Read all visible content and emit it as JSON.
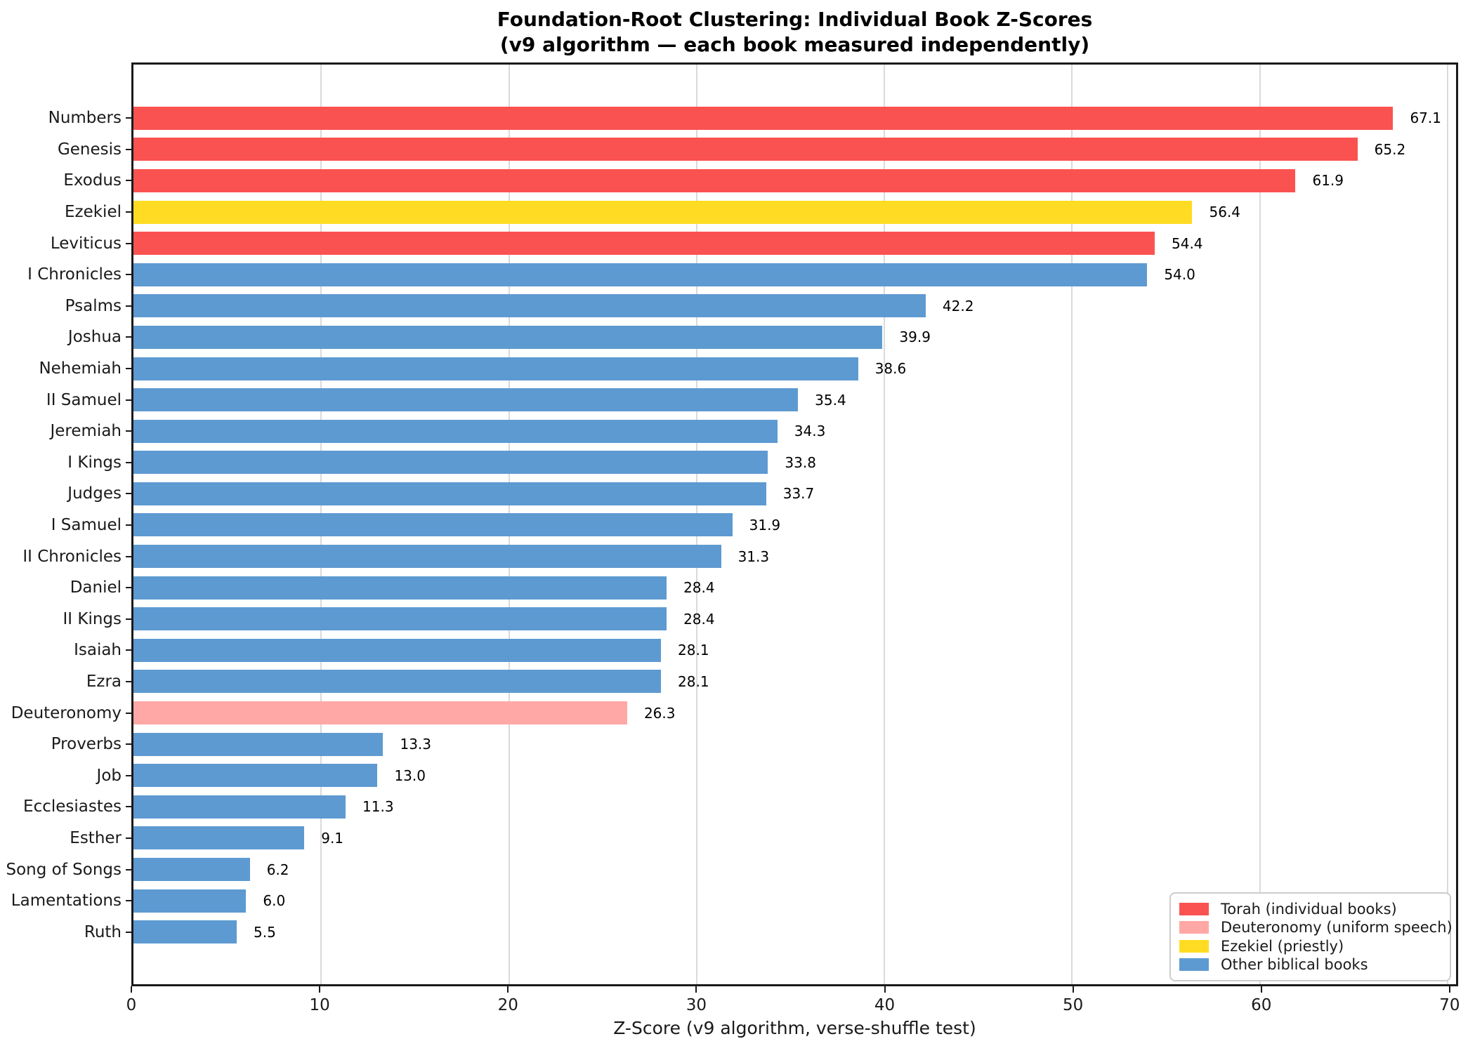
{
  "title": {
    "line1": "Foundation-Root Clustering: Individual Book Z-Scores",
    "line2": "(v9 algorithm — each book measured independently)"
  },
  "chart_data": {
    "type": "bar",
    "orientation": "horizontal",
    "title": "Foundation-Root Clustering: Individual Book Z-Scores",
    "subtitle": "(v9 algorithm — each book measured independently)",
    "xlabel": "Z-Score (v9 algorithm, verse-shuffle test)",
    "ylabel": "",
    "xlim": [
      0,
      70.45
    ],
    "xticks": [
      0,
      10,
      20,
      30,
      40,
      50,
      60,
      70
    ],
    "grid": "vertical-light-gray",
    "value_labels": "one-decimal, right of bar end",
    "categories": [
      "Numbers",
      "Genesis",
      "Exodus",
      "Ezekiel",
      "Leviticus",
      "I Chronicles",
      "Psalms",
      "Joshua",
      "Nehemiah",
      "II Samuel",
      "Jeremiah",
      "I Kings",
      "Judges",
      "I Samuel",
      "II Chronicles",
      "Daniel",
      "II Kings",
      "Isaiah",
      "Ezra",
      "Deuteronomy",
      "Proverbs",
      "Job",
      "Ecclesiastes",
      "Esther",
      "Song of Songs",
      "Lamentations",
      "Ruth"
    ],
    "values": [
      67.1,
      65.2,
      61.9,
      56.4,
      54.4,
      54.0,
      42.2,
      39.9,
      38.6,
      35.4,
      34.3,
      33.8,
      33.7,
      31.9,
      31.3,
      28.4,
      28.4,
      28.1,
      28.1,
      26.3,
      13.3,
      13.0,
      11.3,
      9.1,
      6.2,
      6.0,
      5.5
    ],
    "groups": [
      "torah",
      "torah",
      "torah",
      "ezekiel",
      "torah",
      "other",
      "other",
      "other",
      "other",
      "other",
      "other",
      "other",
      "other",
      "other",
      "other",
      "other",
      "other",
      "other",
      "other",
      "deuteronomy",
      "other",
      "other",
      "other",
      "other",
      "other",
      "other",
      "other"
    ],
    "group_colors": {
      "torah": "#FA5250",
      "deuteronomy": "#FFA8A6",
      "ezekiel": "#FFDC23",
      "other": "#5D9AD1"
    },
    "legend": {
      "position": "lower-right",
      "entries": [
        {
          "label": "Torah (individual books)",
          "color": "#FA5250"
        },
        {
          "label": "Deuteronomy (uniform speech)",
          "color": "#FFA8A6"
        },
        {
          "label": "Ezekiel (priestly)",
          "color": "#FFDC23"
        },
        {
          "label": "Other biblical books",
          "color": "#5D9AD1"
        }
      ]
    }
  }
}
